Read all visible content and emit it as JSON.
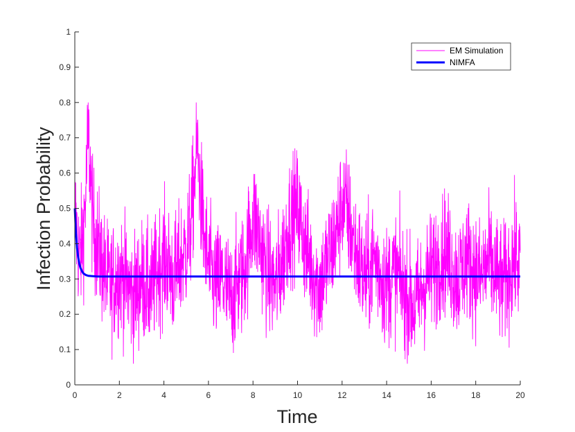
{
  "chart_data": {
    "type": "line",
    "title": "",
    "xlabel": "Time",
    "ylabel": "Infection Probability",
    "xlim": [
      0,
      20
    ],
    "ylim": [
      0,
      1
    ],
    "xticks": [
      "0",
      "2",
      "4",
      "6",
      "8",
      "10",
      "12",
      "14",
      "16",
      "18",
      "20"
    ],
    "yticks": [
      "0",
      "0.1",
      "0.2",
      "0.3",
      "0.4",
      "0.5",
      "0.6",
      "0.7",
      "0.8",
      "0.9",
      "1"
    ],
    "grid": false,
    "legend": {
      "position": "top-right",
      "entries": [
        "EM Simulation",
        "NIMFA"
      ]
    },
    "series": [
      {
        "name": "EM Simulation",
        "color": "#ff00ff",
        "style": "noisy",
        "x": [
          0,
          0.1,
          0.2,
          0.3,
          0.4,
          0.5,
          0.6,
          0.7,
          0.8,
          1.0,
          1.2,
          1.4,
          1.6,
          1.8,
          2.0,
          2.2,
          2.4,
          2.6,
          2.8,
          3.0,
          3.2,
          3.4,
          3.6,
          3.8,
          4.0,
          4.2,
          4.4,
          4.6,
          4.8,
          5.0,
          5.2,
          5.4,
          5.5,
          5.6,
          5.8,
          6.0,
          6.2,
          6.4,
          6.6,
          6.8,
          7.0,
          7.2,
          7.4,
          7.6,
          7.8,
          8.0,
          8.2,
          8.4,
          8.6,
          8.8,
          9.0,
          9.2,
          9.4,
          9.6,
          9.8,
          10.0,
          10.2,
          10.4,
          10.6,
          10.8,
          11.0,
          11.2,
          11.4,
          11.6,
          11.8,
          12.0,
          12.2,
          12.4,
          12.6,
          12.8,
          13.0,
          13.2,
          13.4,
          13.6,
          13.8,
          14.0,
          14.2,
          14.4,
          14.6,
          14.8,
          15.0,
          15.2,
          15.4,
          15.6,
          15.8,
          16.0,
          16.2,
          16.4,
          16.6,
          16.8,
          17.0,
          17.2,
          17.4,
          17.6,
          17.8,
          18.0,
          18.2,
          18.4,
          18.6,
          18.8,
          19.0,
          19.2,
          19.4,
          19.6,
          19.8,
          20.0
        ],
        "values": [
          0.5,
          0.42,
          0.36,
          0.38,
          0.45,
          0.55,
          0.72,
          0.6,
          0.46,
          0.4,
          0.35,
          0.3,
          0.28,
          0.3,
          0.32,
          0.3,
          0.28,
          0.25,
          0.27,
          0.3,
          0.28,
          0.26,
          0.3,
          0.34,
          0.36,
          0.34,
          0.3,
          0.32,
          0.36,
          0.38,
          0.45,
          0.6,
          0.68,
          0.58,
          0.42,
          0.34,
          0.3,
          0.28,
          0.3,
          0.27,
          0.24,
          0.27,
          0.3,
          0.32,
          0.4,
          0.48,
          0.44,
          0.38,
          0.33,
          0.3,
          0.28,
          0.32,
          0.38,
          0.46,
          0.48,
          0.5,
          0.44,
          0.38,
          0.34,
          0.3,
          0.28,
          0.32,
          0.36,
          0.4,
          0.44,
          0.52,
          0.5,
          0.44,
          0.38,
          0.34,
          0.3,
          0.32,
          0.36,
          0.34,
          0.3,
          0.28,
          0.3,
          0.32,
          0.3,
          0.26,
          0.24,
          0.22,
          0.24,
          0.27,
          0.3,
          0.32,
          0.34,
          0.36,
          0.38,
          0.36,
          0.32,
          0.3,
          0.33,
          0.36,
          0.34,
          0.32,
          0.3,
          0.33,
          0.35,
          0.32,
          0.3,
          0.28,
          0.3,
          0.34,
          0.36,
          0.34
        ]
      },
      {
        "name": "NIMFA",
        "color": "#0000ff",
        "style": "solid",
        "x": [
          0,
          0.05,
          0.1,
          0.15,
          0.2,
          0.25,
          0.3,
          0.35,
          0.4,
          0.5,
          0.6,
          0.8,
          1.0,
          2,
          4,
          6,
          8,
          10,
          12,
          14,
          16,
          18,
          20
        ],
        "values": [
          0.5,
          0.43,
          0.388,
          0.362,
          0.344,
          0.332,
          0.325,
          0.319,
          0.315,
          0.311,
          0.309,
          0.308,
          0.307,
          0.307,
          0.307,
          0.307,
          0.307,
          0.307,
          0.307,
          0.307,
          0.307,
          0.307,
          0.307
        ]
      }
    ]
  }
}
